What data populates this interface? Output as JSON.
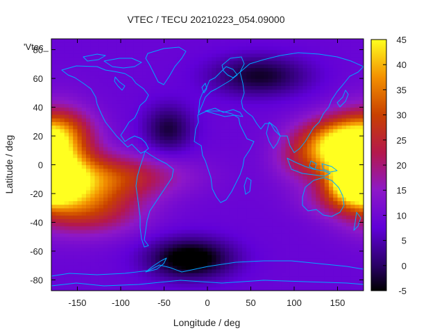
{
  "chart_data": {
    "type": "heatmap",
    "title": "VTEC / TECU 20210223_054.09000",
    "xlabel": "Longitude / deg",
    "ylabel": "Latitude / deg",
    "xlim": [
      -180,
      180
    ],
    "ylim": [
      -87.5,
      87.5
    ],
    "xticks": [
      -150,
      -100,
      -50,
      0,
      50,
      100,
      150
    ],
    "yticks": [
      -80,
      -60,
      -40,
      -20,
      0,
      20,
      40,
      60,
      80
    ],
    "colorbar": {
      "range": [
        -5,
        45
      ],
      "ticks": [
        -5,
        0,
        5,
        10,
        15,
        20,
        25,
        30,
        35,
        40,
        45
      ]
    },
    "legend": {
      "label": "'Vtec_",
      "placement": "top-left"
    },
    "grid": false,
    "overlay": "coastlines",
    "colors": {
      "coastline": "#00a8ff",
      "palette": "black-purple-red-orange-yellow"
    },
    "field": {
      "background_tecu": 9,
      "features": [
        {
          "name": "equatorial-anomaly-pacific-east",
          "lon": -175,
          "lat": 3,
          "peak_tecu": 36,
          "lon_width": 28,
          "lat_width": 22
        },
        {
          "name": "anomaly-pacific-south",
          "lon": -150,
          "lat": -15,
          "peak_tecu": 24,
          "lon_width": 45,
          "lat_width": 16
        },
        {
          "name": "south-pacific-tail",
          "lon": -130,
          "lat": -32,
          "peak_tecu": 20,
          "lon_width": 40,
          "lat_width": 12
        },
        {
          "name": "south-america-band",
          "lon": -100,
          "lat": -8,
          "peak_tecu": 22,
          "lon_width": 55,
          "lat_width": 10
        },
        {
          "name": "northern-east-pacific",
          "lon": -165,
          "lat": 25,
          "peak_tecu": 17,
          "lon_width": 25,
          "lat_width": 10
        },
        {
          "name": "asia-crest-north",
          "lon": 150,
          "lat": 18,
          "peak_tecu": 34,
          "lon_width": 30,
          "lat_width": 11
        },
        {
          "name": "asia-crest-south",
          "lon": 170,
          "lat": -12,
          "peak_tecu": 36,
          "lon_width": 22,
          "lat_width": 9
        },
        {
          "name": "asia-trough-core",
          "lon": 140,
          "lat": 5,
          "peak_tecu": 23,
          "lon_width": 30,
          "lat_width": 10
        },
        {
          "name": "indian-ocean-west",
          "lon": 100,
          "lat": 5,
          "peak_tecu": 14,
          "lon_width": 22,
          "lat_width": 14
        },
        {
          "name": "australia-band",
          "lon": 150,
          "lat": -25,
          "peak_tecu": 15,
          "lon_width": 30,
          "lat_width": 8
        },
        {
          "name": "south-atlantic-low",
          "lon": -20,
          "lat": -65,
          "peak_tecu": -8,
          "lon_width": 35,
          "lat_width": 10
        },
        {
          "name": "north-atlantic-low",
          "lon": -45,
          "lat": 25,
          "peak_tecu": -2,
          "lon_width": 20,
          "lat_width": 12
        },
        {
          "name": "north-asia-low",
          "lon": 60,
          "lat": 62,
          "peak_tecu": -3,
          "lon_width": 40,
          "lat_width": 10
        }
      ]
    }
  }
}
